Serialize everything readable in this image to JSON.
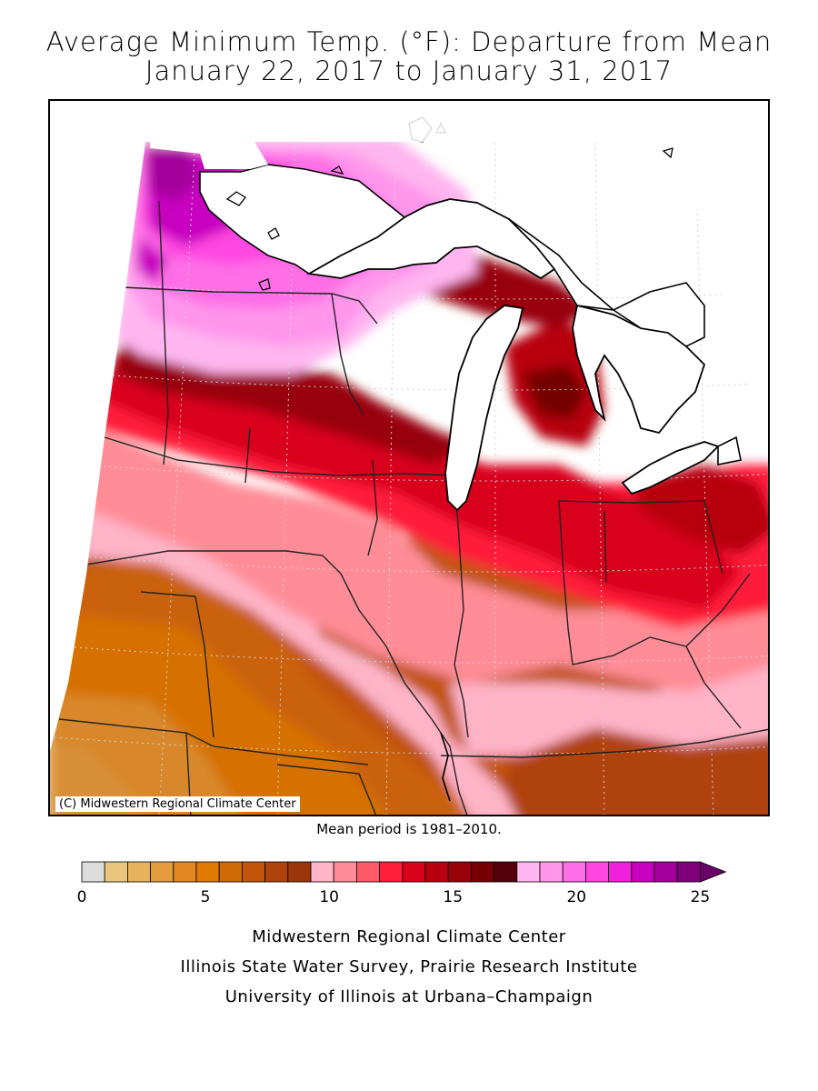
{
  "title": {
    "line1": "Average Minimum Temp. (°F): Departure from Mean",
    "line2": "January 22, 2017 to January 31, 2017"
  },
  "map": {
    "copyright": "(C) Midwestern Regional Climate Center",
    "mean_period": "Mean period is 1981–2010."
  },
  "legend": {
    "colors": [
      "#dcdcdc",
      "#e8c67e",
      "#e6b35c",
      "#e49d3c",
      "#e28722",
      "#e07a05",
      "#cf6b06",
      "#c25508",
      "#b0430a",
      "#9c360a",
      "#ffb4c8",
      "#ff8c96",
      "#ff5a69",
      "#ff1f3a",
      "#d9001a",
      "#b8000f",
      "#990008",
      "#740004",
      "#54000a",
      "#ffb6f0",
      "#ff96ec",
      "#ff6ee6",
      "#ff46e1",
      "#f020dc",
      "#c800c0",
      "#a4009c",
      "#80007a"
    ],
    "arrow_color": "#6a0068",
    "tick_labels": [
      "0",
      "5",
      "10",
      "15",
      "20",
      "25"
    ]
  },
  "credits": {
    "line1": "Midwestern Regional Climate Center",
    "line2": "Illinois State Water Survey, Prairie Research Institute",
    "line3": "University of Illinois at Urbana–Champaign"
  }
}
